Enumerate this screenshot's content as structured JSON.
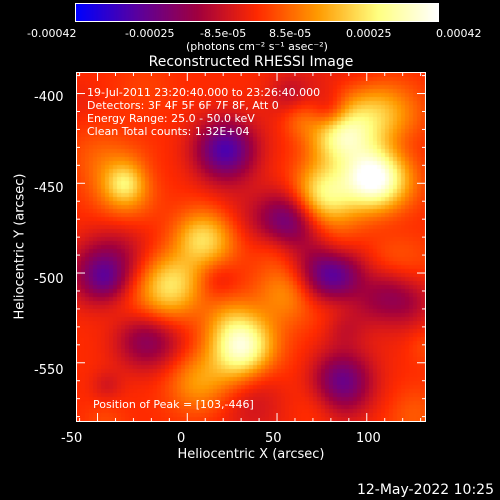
{
  "colorbar": {
    "tick_labels": [
      "-0.00042",
      "-0.00025",
      "-8.5e-05",
      "8.5e-05",
      "0.00025",
      "0.00042"
    ],
    "units": "(photons cm⁻² s⁻¹ asec⁻²)"
  },
  "chart_data": {
    "type": "heatmap",
    "title": "Reconstructed RHESSI Image",
    "xlabel": "Heliocentric X (arcsec)",
    "ylabel": "Heliocentric Y (arcsec)",
    "xlim": [
      -62,
      133
    ],
    "ylim": [
      -583,
      -388
    ],
    "x_ticks": [
      -50,
      0,
      50,
      100
    ],
    "x_tick_labels": [
      "-50",
      "0",
      "50",
      "100"
    ],
    "y_ticks": [
      -550,
      -500,
      -450,
      -400
    ],
    "y_tick_labels": [
      "-550",
      "-500",
      "-450",
      "-400"
    ],
    "color_range": [
      -0.00042,
      0.00042
    ],
    "colormap": [
      "#0000ff",
      "#5a00a0",
      "#a00040",
      "#ff2a00",
      "#ff9a00",
      "#ffff80",
      "#ffffff"
    ],
    "peak_position": [
      103,
      -446
    ],
    "bright_sources": [
      {
        "x": 103,
        "y": -446,
        "value": 0.00042
      },
      {
        "x": 85,
        "y": -420,
        "value": 0.00036
      },
      {
        "x": 30,
        "y": -540,
        "value": 0.00034
      },
      {
        "x": 75,
        "y": -455,
        "value": 0.00028
      },
      {
        "x": -35,
        "y": -450,
        "value": 0.0002
      },
      {
        "x": 10,
        "y": -480,
        "value": 0.00022
      },
      {
        "x": -10,
        "y": -505,
        "value": 0.00022
      },
      {
        "x": 55,
        "y": -510,
        "value": 0.00016
      },
      {
        "x": 5,
        "y": -560,
        "value": 0.00014
      }
    ],
    "dim_regions": [
      {
        "x": 20,
        "y": -430,
        "value": -0.0003
      },
      {
        "x": 55,
        "y": -470,
        "value": -0.00025
      },
      {
        "x": 80,
        "y": -500,
        "value": -0.00025
      },
      {
        "x": -25,
        "y": -535,
        "value": -0.00022
      },
      {
        "x": 85,
        "y": -560,
        "value": -0.00025
      },
      {
        "x": -50,
        "y": -500,
        "value": -0.0002
      },
      {
        "x": 120,
        "y": -510,
        "value": -0.0002
      }
    ]
  },
  "annotations": {
    "time_range": "19-Jul-2011 23:20:40.000 to 23:26:40.000",
    "detectors": "Detectors: 3F 4F 5F 6F 7F 8F, Att 0",
    "energy": "Energy Range: 25.0 - 50.0 keV",
    "clean_counts": "Clean    Total counts: 1.32E+04",
    "peak": "Position of Peak = [103,-446]"
  },
  "footer": {
    "timestamp": "12-May-2022 10:25"
  }
}
